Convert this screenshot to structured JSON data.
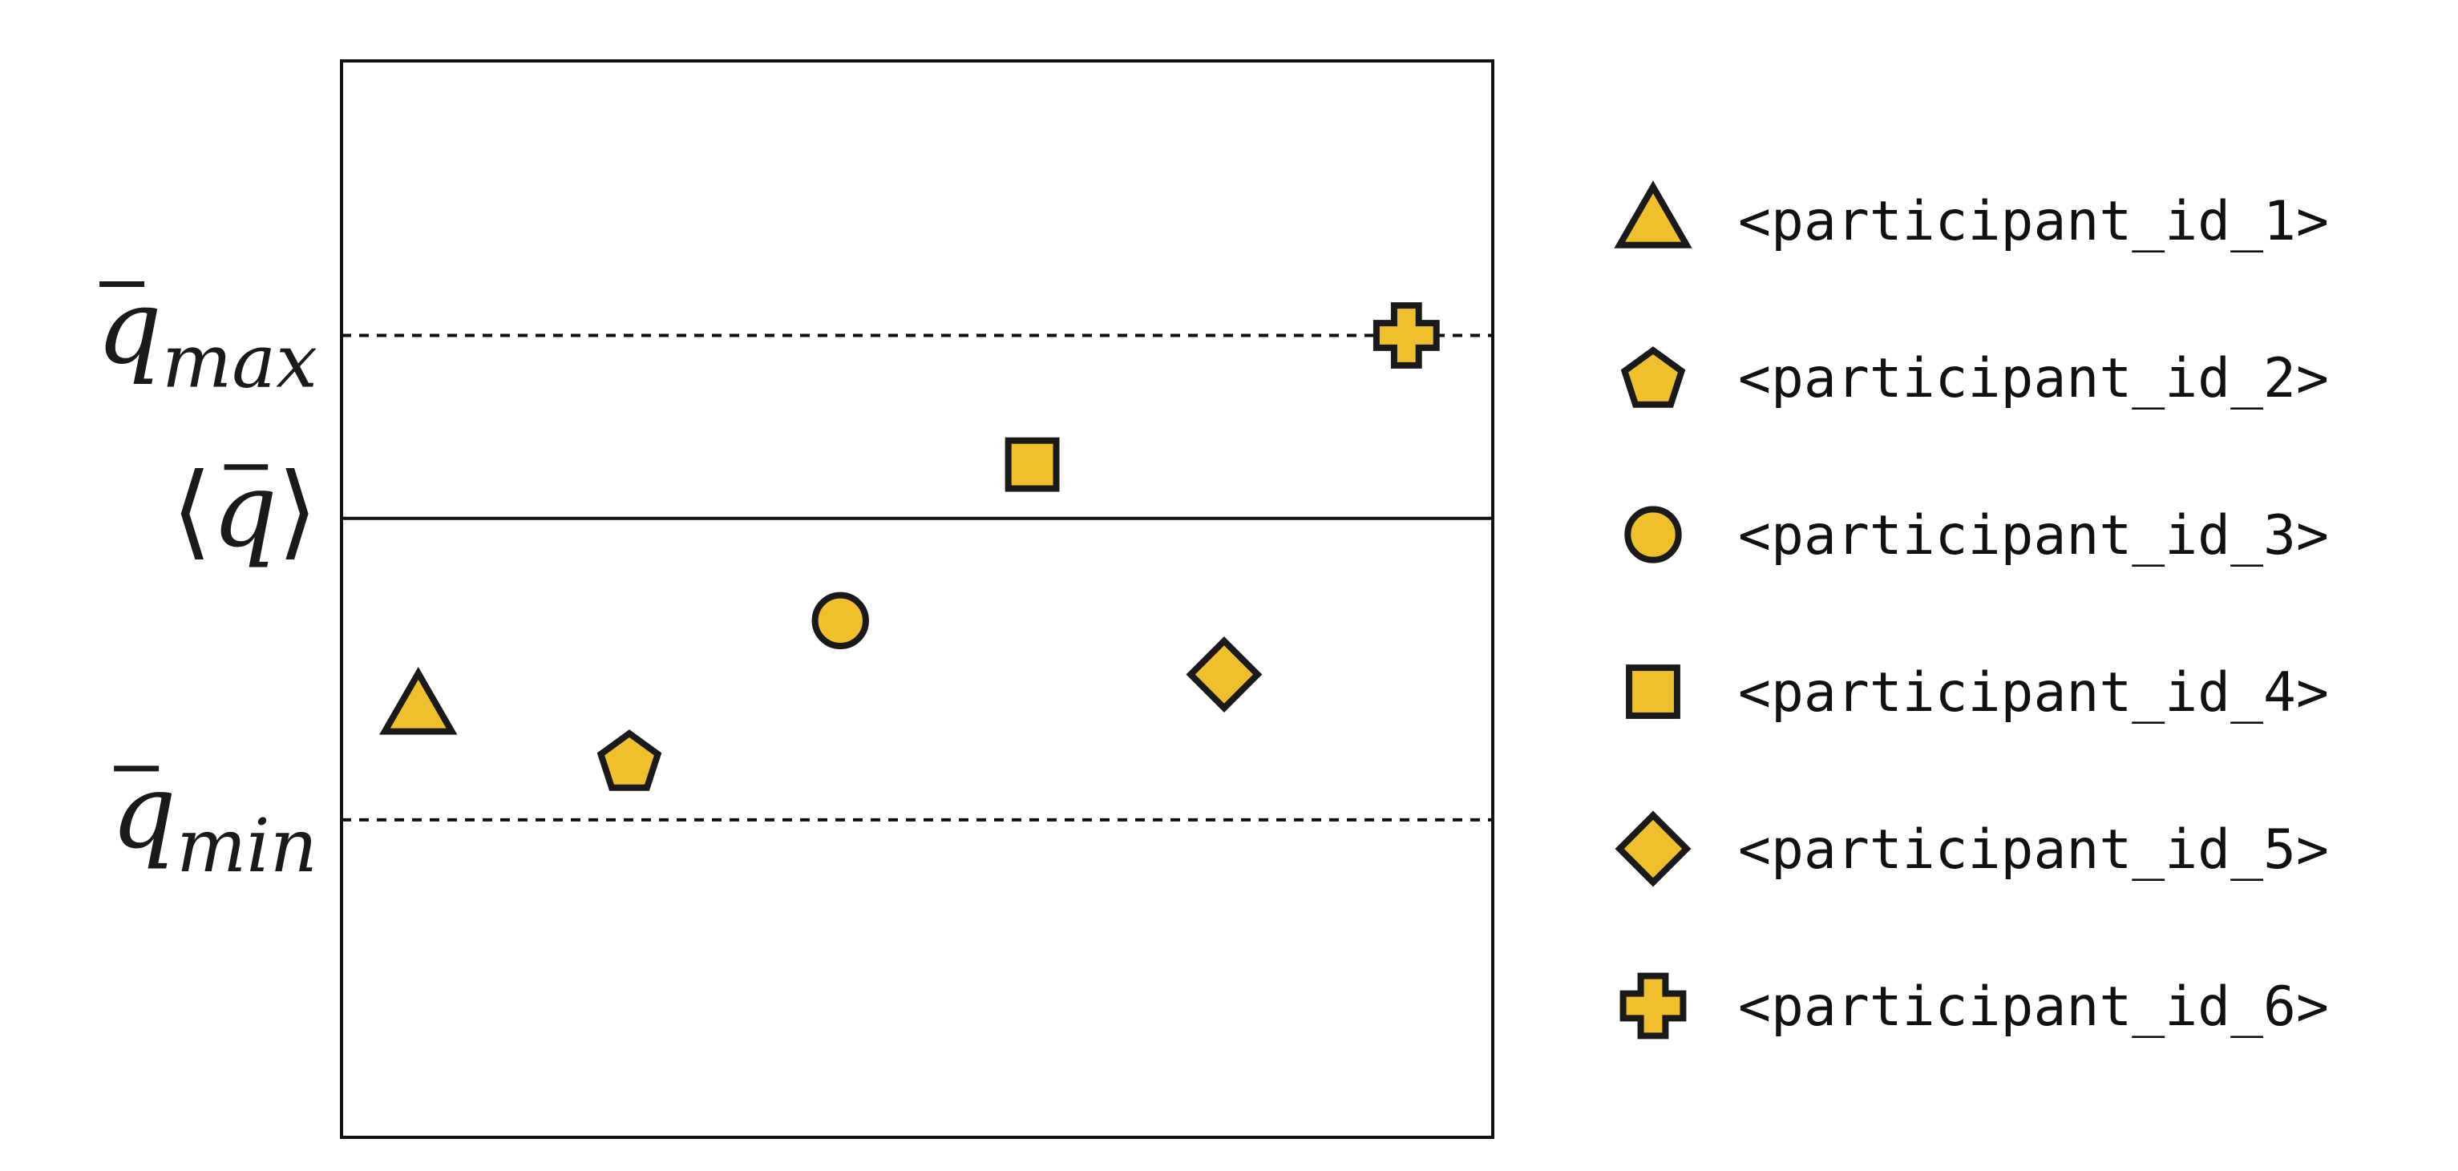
{
  "chart_data": {
    "type": "scatter",
    "title": "",
    "xlabel": "",
    "ylabel": "",
    "grid": false,
    "legend_position": "right",
    "reference_lines": [
      {
        "key": "q_max",
        "base": "q",
        "sub": "max",
        "bar": true,
        "angle": false,
        "style": "dashed",
        "value": 0.745
      },
      {
        "key": "q_mean",
        "base": "q",
        "sub": "",
        "bar": true,
        "angle": true,
        "style": "solid",
        "value": 0.575
      },
      {
        "key": "q_min",
        "base": "q",
        "sub": "min",
        "bar": true,
        "angle": false,
        "style": "dashed",
        "value": 0.295
      }
    ],
    "x_range": [
      0,
      6
    ],
    "y_range": [
      0,
      1
    ],
    "series": [
      {
        "name": "<participant_id_1>",
        "marker": "triangle",
        "x": 0.4,
        "y": 0.4
      },
      {
        "name": "<participant_id_2>",
        "marker": "pentagon",
        "x": 1.5,
        "y": 0.35
      },
      {
        "name": "<participant_id_3>",
        "marker": "circle",
        "x": 2.6,
        "y": 0.48
      },
      {
        "name": "<participant_id_4>",
        "marker": "square",
        "x": 3.6,
        "y": 0.625
      },
      {
        "name": "<participant_id_5>",
        "marker": "diamond",
        "x": 4.6,
        "y": 0.43
      },
      {
        "name": "<participant_id_6>",
        "marker": "cross",
        "x": 5.55,
        "y": 0.745
      }
    ]
  },
  "colors": {
    "marker_fill": "#f0c02c",
    "marker_stroke": "#1a1a1a",
    "frame": "#111111"
  }
}
